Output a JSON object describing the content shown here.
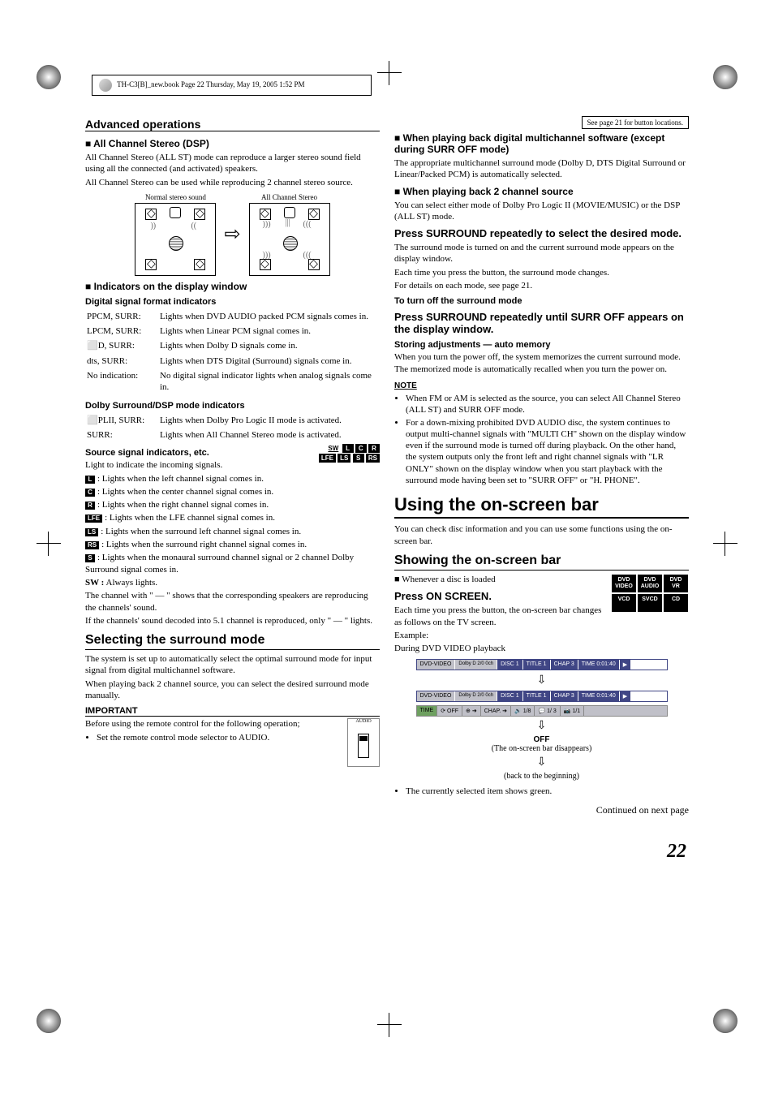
{
  "header": {
    "book_ref": "TH-C3[B]_new.book  Page 22  Thursday, May 19, 2005  1:52 PM"
  },
  "section_header": {
    "title": "Advanced operations",
    "button_note": "See page 21 for button locations."
  },
  "left_col": {
    "all_ch_title": "All Channel Stereo (DSP)",
    "all_ch_p1": "All Channel Stereo (ALL ST) mode can reproduce a larger stereo sound field using all the connected (and activated) speakers.",
    "all_ch_p2": "All Channel Stereo can be used while reproducing 2 channel stereo source.",
    "diagram_left_label": "Normal stereo sound",
    "diagram_right_label": "All Channel Stereo",
    "indicators_title": "Indicators on the display window",
    "dsf_title": "Digital signal format indicators",
    "dsf": [
      {
        "k": "PPCM, SURR:",
        "v": "Lights when DVD AUDIO packed PCM signals comes in."
      },
      {
        "k": "LPCM, SURR:",
        "v": "Lights when Linear PCM signal comes in."
      },
      {
        "k": "⬜D, SURR:",
        "v": "Lights when Dolby D signals come in."
      },
      {
        "k": "dts, SURR:",
        "v": "Lights when DTS Digital (Surround) signals come in."
      },
      {
        "k": "No indication:",
        "v": "No digital signal indicator lights when analog signals come in."
      }
    ],
    "dolby_title": "Dolby Surround/DSP mode indicators",
    "dolby": [
      {
        "k": "⬜PLII, SURR:",
        "v": "Lights when Dolby Pro Logic II mode is activated."
      },
      {
        "k": "SURR:",
        "v": "Lights when All Channel Stereo mode is activated."
      }
    ],
    "source_title": "Source signal indicators, etc.",
    "source_intro": "Light to indicate the incoming signals.",
    "ind_badges_row1": [
      "SW",
      "L",
      "C",
      "R"
    ],
    "ind_badges_row2": [
      "LFE",
      "LS",
      "S",
      "RS"
    ],
    "source_items": [
      {
        "icon": "L",
        "text": "Lights when the left channel signal comes in."
      },
      {
        "icon": "C",
        "text": "Lights when the center channel signal comes in."
      },
      {
        "icon": "R",
        "text": "Lights when the right channel signal comes in."
      },
      {
        "icon": "LFE",
        "text": "Lights when the LFE channel signal comes in."
      },
      {
        "icon": "LS",
        "text": "Lights when the surround left channel signal comes in."
      },
      {
        "icon": "RS",
        "text": "Lights when the surround right channel signal comes in."
      },
      {
        "icon": "S",
        "text": "Lights when the monaural surround channel signal or 2 channel Dolby Surround signal comes in."
      }
    ],
    "sw_always": "Always lights.",
    "sw_label": "SW :",
    "channel_p1": "The channel with \" — \" shows that the corresponding speakers are reproducing the channels' sound.",
    "channel_p2": "If the channels' sound decoded into 5.1 channel is reproduced, only \" — \" lights.",
    "selecting_title": "Selecting the surround mode",
    "selecting_p1": "The system is set up to automatically select the optimal surround mode for input signal from digital multichannel software.",
    "selecting_p2": "When playing back 2 channel source, you can select the desired surround mode manually.",
    "important_label": "IMPORTANT",
    "important_p": "Before using the remote control for the following operation;",
    "important_bullet": "Set the remote control mode selector to AUDIO.",
    "remote_label": "AUDIO"
  },
  "right_col": {
    "multi_title": "When playing back digital multichannel software (except during SURR OFF mode)",
    "multi_p": "The appropriate multichannel surround mode (Dolby D, DTS Digital Surround or Linear/Packed PCM) is automatically selected.",
    "two_ch_title": "When playing back 2 channel source",
    "two_ch_p": "You can select either mode of Dolby Pro Logic II (MOVIE/MUSIC) or the DSP (ALL ST) mode.",
    "press_surround_title": "Press SURROUND repeatedly to select the desired mode.",
    "press_surround_p1": "The surround mode is turned on and the current surround mode appears on the display window.",
    "press_surround_p2": "Each time you press the button, the surround mode changes.",
    "press_surround_p3": "For details on each mode, see page 21.",
    "turnoff_title": "To turn off the surround mode",
    "turnoff_press": "Press SURROUND repeatedly until SURR OFF appears on the display window.",
    "storing_title": "Storing adjustments — auto memory",
    "storing_p": "When you turn the power off, the system memorizes the current surround mode. The memorized mode is automatically recalled when you turn the power on.",
    "note_label": "NOTE",
    "note1": "When FM or AM is selected as the source, you can select All Channel Stereo (ALL ST) and SURR OFF mode.",
    "note2": "For a down-mixing prohibited DVD AUDIO disc, the system continues to output multi-channel signals with \"MULTI CH\" shown on the display window even if the surround mode is turned off during playback. On the other hand, the system outputs only the front left and right channel signals with \"LR ONLY\" shown on the display window when you start playback with the surround mode having been set to \"SURR OFF\" or \"H. PHONE\".",
    "using_title": "Using the on-screen bar",
    "using_p": "You can check disc information and you can use some functions using the on-screen bar.",
    "showing_title": "Showing the on-screen bar",
    "showing_bullet": "Whenever a disc is loaded",
    "disc_badges": [
      "DVD VIDEO",
      "DVD AUDIO",
      "DVD VR",
      "VCD",
      "SVCD",
      "CD"
    ],
    "press_onscreen": "Press ON SCREEN.",
    "press_onscreen_p": "Each time you press the button, the on-screen bar changes as follows on the TV screen.",
    "example_label": "Example:",
    "example_sub": "During DVD VIDEO playback",
    "osd1": {
      "type": "DVD-VIDEO",
      "dolby": "Dolby D 2/0 0ch",
      "disc": "DISC 1",
      "title": "TITLE  1",
      "chap": "CHAP  3",
      "time": "TIME  0:01:40",
      "play": "▶"
    },
    "osd2_controls": {
      "time": "TIME",
      "repeat": "⟳ OFF",
      "clock": "⊕ ➜",
      "chap": "CHAP. ➜",
      "audio": "🔊 1/8",
      "sub": "💬 1/ 3",
      "angle": "📷 1/1"
    },
    "off_label": "OFF",
    "off_note": "(The on-screen bar disappears)",
    "back_note": "(back to the beginning)",
    "selected_note": "The currently selected item shows green.",
    "continued": "Continued on next page",
    "page_num": "22"
  },
  "colors": {
    "text": "#000000",
    "bg": "#ffffff",
    "osd_blue": "#404685",
    "osd_gray": "#c0c0c8",
    "osd_green": "#6ea060"
  }
}
